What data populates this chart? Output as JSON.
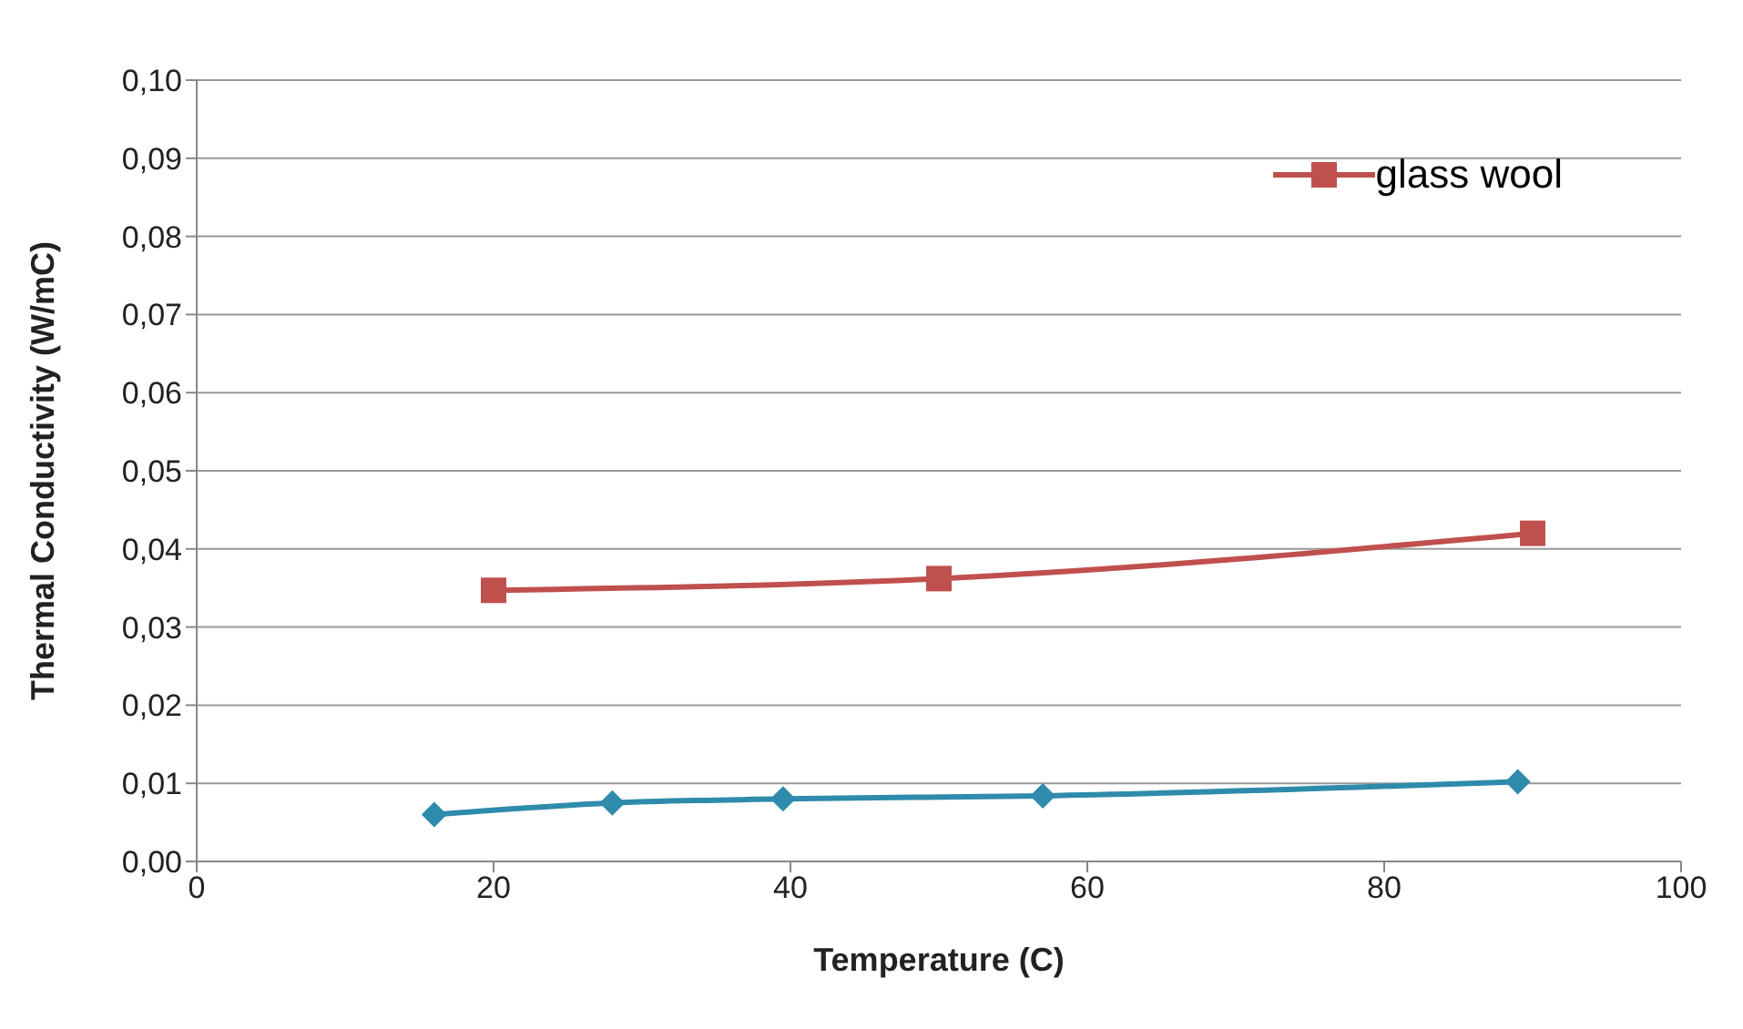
{
  "chart_data": {
    "type": "line",
    "xlabel": "Temperature (C)",
    "ylabel": "Thermal Conductivity (W/mC)",
    "xlim": [
      0,
      100
    ],
    "xticks": [
      0,
      20,
      40,
      60,
      80,
      100
    ],
    "ylim": [
      0,
      0.1
    ],
    "yticks": [
      {
        "value": 0,
        "label": "0,00"
      },
      {
        "value": 0.01,
        "label": "0,01"
      },
      {
        "value": 0.02,
        "label": "0,02"
      },
      {
        "value": 0.03,
        "label": "0,03"
      },
      {
        "value": 0.04,
        "label": "0,04"
      },
      {
        "value": 0.05,
        "label": "0,05"
      },
      {
        "value": 0.06,
        "label": "0,06"
      },
      {
        "value": 0.07,
        "label": "0,07"
      },
      {
        "value": 0.08,
        "label": "0,08"
      },
      {
        "value": 0.09,
        "label": "0,09"
      },
      {
        "value": 0.1,
        "label": "0,10"
      }
    ],
    "grid": "y",
    "legend": "top right",
    "line_style": "solid",
    "series": [
      {
        "color": "#2e8bab",
        "marker": "diamond",
        "x": [
          16,
          28,
          39.5,
          57,
          89
        ],
        "values": [
          0.006,
          0.0075,
          0.008,
          0.0084,
          0.0102
        ]
      },
      {
        "name": "glass wool",
        "color": "#c0504d",
        "marker": "square",
        "x": [
          20,
          50,
          90
        ],
        "values": [
          0.0347,
          0.0362,
          0.042
        ]
      }
    ]
  }
}
